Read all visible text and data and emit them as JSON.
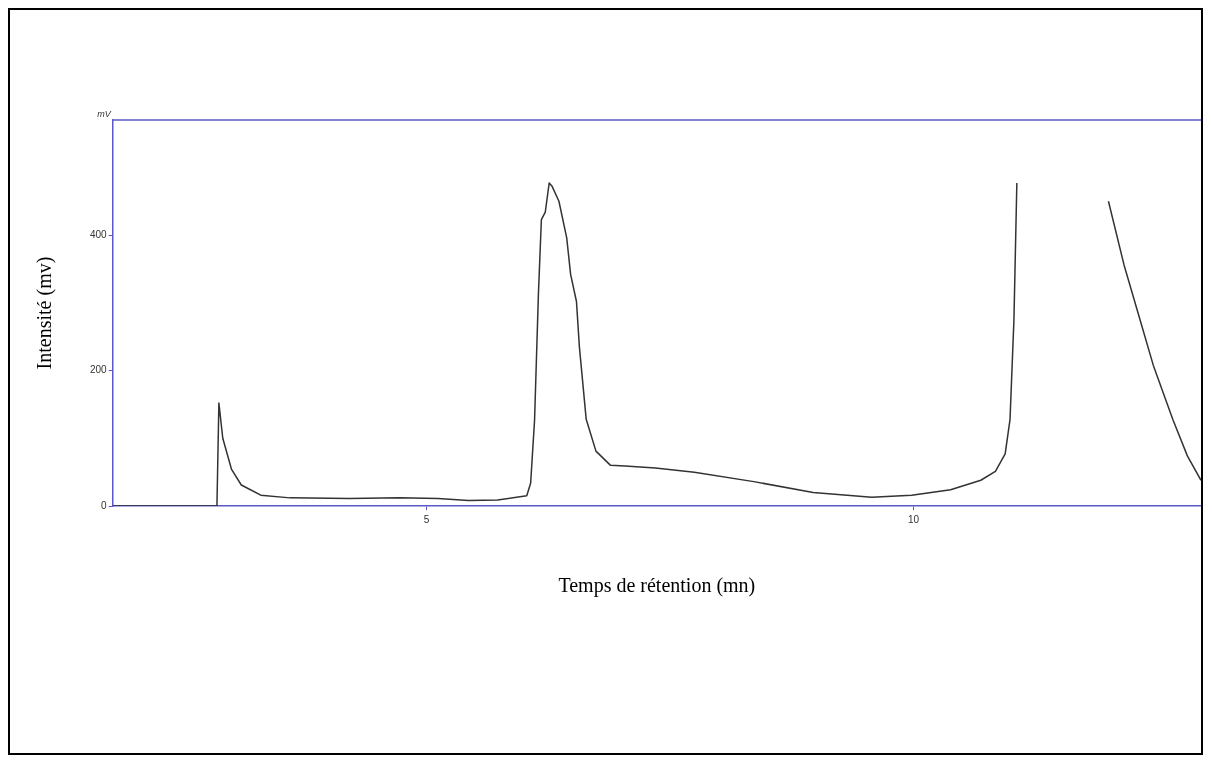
{
  "chart_data": {
    "type": "line",
    "xlabel": "Temps de rétention (mn)",
    "ylabel": "Intensité (mv)",
    "annotations": [
      "mV"
    ],
    "x": [
      1.78,
      2.85,
      2.87,
      2.91,
      3.0,
      3.1,
      3.3,
      3.6,
      4.21,
      4.72,
      5.12,
      5.43,
      5.73,
      6.03,
      6.07,
      6.11,
      6.15,
      6.18,
      6.22,
      6.26,
      6.29,
      6.36,
      6.44,
      6.48,
      6.54,
      6.57,
      6.64,
      6.74,
      6.89,
      7.04,
      7.35,
      7.75,
      8.36,
      8.97,
      9.57,
      9.98,
      10.38,
      10.69,
      10.84,
      10.94,
      10.99,
      11.03,
      11.06,
      11.08,
      11.5,
      11.84,
      12.0,
      12.16,
      12.31,
      12.46,
      12.66,
      12.81,
      12.95
    ],
    "series": [
      {
        "color": "#333333",
        "values": [
          0,
          0,
          152,
          100,
          54,
          31,
          16,
          12,
          11,
          12,
          11,
          8,
          9,
          15,
          34,
          127,
          315,
          423,
          434,
          477,
          472,
          450,
          396,
          342,
          302,
          235,
          128,
          81,
          60,
          59,
          56,
          50,
          36,
          20,
          13,
          16,
          24,
          38,
          51,
          77,
          128,
          275,
          477,
          null,
          null,
          null,
          450,
          356,
          282,
          208,
          128,
          74,
          38
        ]
      }
    ],
    "xlim": [
      1.78,
      12.95
    ],
    "ylim": [
      0,
      570
    ],
    "xticks": [
      5,
      10
    ],
    "yticks": [
      0,
      200,
      400
    ],
    "grid": false,
    "legend": false,
    "marker": "none",
    "line_style": "solid"
  }
}
